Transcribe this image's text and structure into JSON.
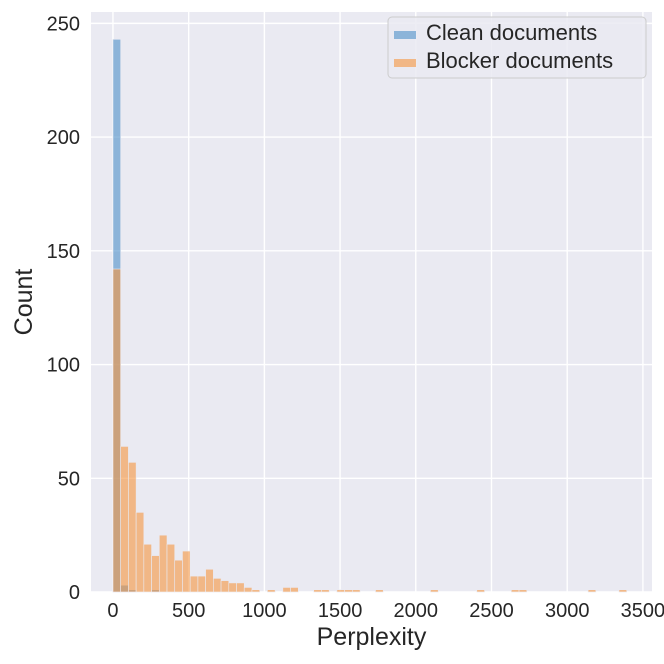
{
  "chart_data": {
    "type": "bar",
    "subtype": "histogram",
    "xlabel": "Perplexity",
    "ylabel": "Count",
    "xlim": [
      -145,
      3560
    ],
    "ylim": [
      0,
      255
    ],
    "x_ticks": [
      0,
      500,
      1000,
      1500,
      2000,
      2500,
      3000,
      3500
    ],
    "x_tick_labels": [
      "0",
      "500",
      "1000",
      "1500",
      "2000",
      "2500",
      "3000",
      "3500"
    ],
    "y_ticks": [
      0,
      50,
      100,
      150,
      200,
      250
    ],
    "y_tick_labels": [
      "0",
      "50",
      "100",
      "150",
      "200",
      "250"
    ],
    "grid": true,
    "legend_position": "top-right",
    "bin_width": 51,
    "series": [
      {
        "name": "Clean documents",
        "color": "#4c8fc8",
        "opacity": 0.6,
        "bins": [
          {
            "x0": 0,
            "x1": 51,
            "count": 243
          },
          {
            "x0": 51,
            "x1": 102,
            "count": 3
          },
          {
            "x0": 102,
            "x1": 153,
            "count": 1
          },
          {
            "x0": 255,
            "x1": 306,
            "count": 1
          }
        ]
      },
      {
        "name": "Blocker documents",
        "color": "#f5943d",
        "opacity": 0.6,
        "bins": [
          {
            "x0": 0,
            "x1": 51,
            "count": 142
          },
          {
            "x0": 51,
            "x1": 102,
            "count": 64
          },
          {
            "x0": 102,
            "x1": 153,
            "count": 57
          },
          {
            "x0": 153,
            "x1": 204,
            "count": 35
          },
          {
            "x0": 204,
            "x1": 255,
            "count": 21
          },
          {
            "x0": 255,
            "x1": 306,
            "count": 16
          },
          {
            "x0": 306,
            "x1": 357,
            "count": 25
          },
          {
            "x0": 357,
            "x1": 408,
            "count": 21
          },
          {
            "x0": 408,
            "x1": 459,
            "count": 14
          },
          {
            "x0": 459,
            "x1": 510,
            "count": 18
          },
          {
            "x0": 510,
            "x1": 561,
            "count": 7
          },
          {
            "x0": 561,
            "x1": 612,
            "count": 7
          },
          {
            "x0": 612,
            "x1": 663,
            "count": 10
          },
          {
            "x0": 663,
            "x1": 714,
            "count": 6
          },
          {
            "x0": 714,
            "x1": 765,
            "count": 5
          },
          {
            "x0": 765,
            "x1": 816,
            "count": 4
          },
          {
            "x0": 816,
            "x1": 867,
            "count": 4
          },
          {
            "x0": 867,
            "x1": 918,
            "count": 2
          },
          {
            "x0": 918,
            "x1": 969,
            "count": 1
          },
          {
            "x0": 1020,
            "x1": 1071,
            "count": 1
          },
          {
            "x0": 1122,
            "x1": 1173,
            "count": 2
          },
          {
            "x0": 1173,
            "x1": 1224,
            "count": 2
          },
          {
            "x0": 1326,
            "x1": 1377,
            "count": 1
          },
          {
            "x0": 1377,
            "x1": 1428,
            "count": 1
          },
          {
            "x0": 1479,
            "x1": 1530,
            "count": 1
          },
          {
            "x0": 1530,
            "x1": 1581,
            "count": 1
          },
          {
            "x0": 1581,
            "x1": 1632,
            "count": 1
          },
          {
            "x0": 1734,
            "x1": 1785,
            "count": 1
          },
          {
            "x0": 2097,
            "x1": 2148,
            "count": 1
          },
          {
            "x0": 2403,
            "x1": 2454,
            "count": 1
          },
          {
            "x0": 2631,
            "x1": 2682,
            "count": 1
          },
          {
            "x0": 2682,
            "x1": 2733,
            "count": 1
          },
          {
            "x0": 3138,
            "x1": 3189,
            "count": 1
          },
          {
            "x0": 3342,
            "x1": 3393,
            "count": 1
          }
        ]
      }
    ]
  }
}
